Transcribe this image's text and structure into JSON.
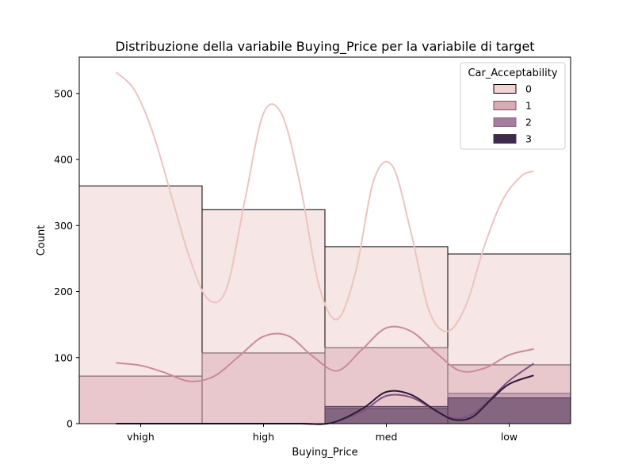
{
  "chart_data": {
    "type": "bar",
    "title": "Distribuzione della variabile Buying_Price per la variabile di target",
    "xlabel": "Buying_Price",
    "ylabel": "Count",
    "categories": [
      "vhigh",
      "high",
      "med",
      "low"
    ],
    "ylim": [
      0,
      555
    ],
    "yticks": [
      0,
      100,
      200,
      300,
      400,
      500
    ],
    "grid": false,
    "legend": {
      "title": "Car_Acceptability",
      "placement": "top-right"
    },
    "series": [
      {
        "name": "0",
        "color": "#f0d5d3",
        "values": [
          360,
          324,
          268,
          257
        ],
        "kde": {
          "x": [
            -0.2,
            -0.05,
            0.1,
            0.25,
            0.4,
            0.55,
            0.7,
            0.85,
            1.0,
            1.15,
            1.3,
            1.45,
            1.6,
            1.75,
            1.9,
            2.05,
            2.2,
            2.35,
            2.5,
            2.65,
            2.8,
            2.95,
            3.1,
            3.2
          ],
          "y": [
            532,
            505,
            440,
            345,
            250,
            188,
            205,
            340,
            470,
            468,
            360,
            210,
            158,
            230,
            370,
            390,
            290,
            170,
            140,
            180,
            270,
            340,
            375,
            382
          ]
        }
      },
      {
        "name": "1",
        "color": "#dba9b6",
        "values": [
          72,
          107,
          115,
          89
        ],
        "kde": {
          "x": [
            -0.2,
            0.0,
            0.2,
            0.4,
            0.6,
            0.8,
            1.0,
            1.2,
            1.4,
            1.6,
            1.8,
            2.0,
            2.2,
            2.4,
            2.6,
            2.8,
            3.0,
            3.2
          ],
          "y": [
            92,
            88,
            77,
            64,
            72,
            102,
            132,
            133,
            102,
            80,
            112,
            145,
            140,
            108,
            80,
            84,
            104,
            113
          ]
        }
      },
      {
        "name": "2",
        "color": "#a77c9e",
        "values": [
          0,
          0,
          23,
          46
        ],
        "kde": {
          "x": [
            -0.2,
            0.2,
            0.6,
            1.0,
            1.3,
            1.55,
            1.8,
            2.0,
            2.2,
            2.4,
            2.55,
            2.7,
            2.85,
            3.0,
            3.2
          ],
          "y": [
            0,
            0,
            0,
            0,
            0,
            1,
            18,
            42,
            40,
            20,
            8,
            14,
            38,
            65,
            91
          ]
        }
      },
      {
        "name": "3",
        "color": "#3f2a4b",
        "values": [
          0,
          0,
          26,
          39
        ],
        "kde": {
          "x": [
            -0.2,
            0.2,
            0.6,
            1.0,
            1.3,
            1.55,
            1.8,
            2.0,
            2.2,
            2.4,
            2.55,
            2.7,
            2.85,
            3.0,
            3.2
          ],
          "y": [
            0,
            0,
            0,
            0,
            0,
            1,
            22,
            48,
            44,
            20,
            6,
            10,
            36,
            60,
            73
          ]
        }
      }
    ]
  }
}
